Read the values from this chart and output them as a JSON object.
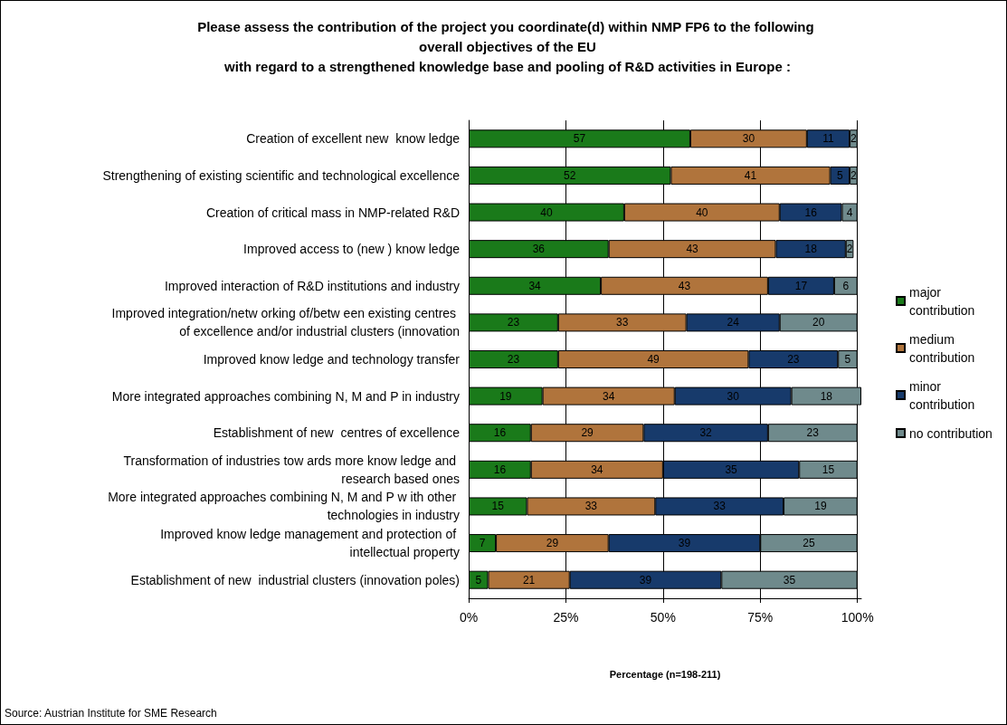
{
  "chart_data": {
    "type": "bar",
    "orientation": "horizontal",
    "stacked": true,
    "title": "Please assess the contribution of the project you coordinate(d) within NMP FP6 to the following overall objectives of the EU\nwith regard to a strengthened knowledge base and pooling of R&D activities in Europe :",
    "xlabel": "Percentage (n=198-211)",
    "annotations": [
      "Source: Austrian Institute for SME Research"
    ],
    "categories": [
      "Creation of excellent new  know ledge",
      "Strengthening of existing scientific and technological excellence",
      "Creation of critical mass in NMP-related R&D",
      "Improved access to (new ) know ledge",
      "Improved interaction of R&D institutions and industry",
      "Improved integration/netw orking of/betw een existing centres of excellence and/or industrial clusters (innovation",
      "Improved know ledge and technology transfer",
      "More integrated approaches combining N, M and P in industry",
      "Establishment of new  centres of excellence",
      "Transformation of industries tow ards more know ledge and research based ones",
      "More integrated approaches combining N, M and P w ith other technologies in industry",
      "Improved know ledge management and protection of intellectual property",
      "Establishment of new  industrial clusters (innovation poles)"
    ],
    "series": [
      {
        "name": "major contribution",
        "color": "#1a7a1a",
        "values": [
          57,
          52,
          40,
          36,
          34,
          23,
          23,
          19,
          16,
          16,
          15,
          7,
          5
        ]
      },
      {
        "name": "medium contribution",
        "color": "#b0743c",
        "values": [
          30,
          41,
          40,
          43,
          43,
          33,
          49,
          34,
          29,
          34,
          33,
          29,
          21
        ]
      },
      {
        "name": "minor contribution",
        "color": "#173a6b",
        "values": [
          11,
          5,
          16,
          18,
          17,
          24,
          23,
          30,
          32,
          35,
          33,
          39,
          39
        ]
      },
      {
        "name": "no contribution",
        "color": "#6f8a8c",
        "values": [
          2,
          2,
          4,
          2,
          6,
          20,
          5,
          18,
          23,
          15,
          19,
          25,
          35
        ]
      }
    ],
    "xlim": [
      0,
      101
    ],
    "xticks": [
      {
        "value": 0,
        "label": "0%"
      },
      {
        "value": 25,
        "label": "25%"
      },
      {
        "value": 50,
        "label": "50%"
      },
      {
        "value": 75,
        "label": "75%"
      },
      {
        "value": 100,
        "label": "100%"
      }
    ],
    "grid": "x",
    "legend": "right",
    "data_labels": true
  }
}
